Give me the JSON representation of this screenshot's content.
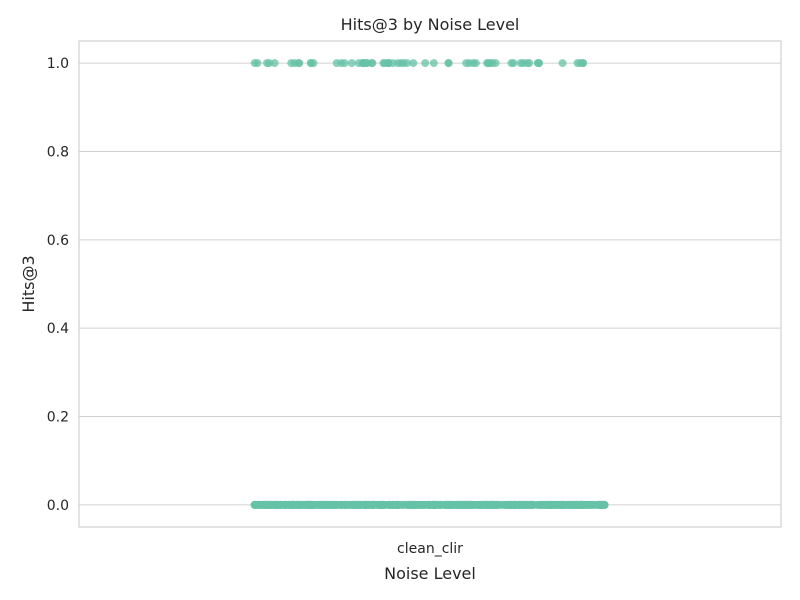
{
  "chart_data": {
    "type": "scatter",
    "subtype": "strip",
    "title": "Hits@3 by Noise Level",
    "xlabel": "Noise Level",
    "ylabel": "Hits@3",
    "categories": [
      "clean_clir"
    ],
    "ylim": [
      -0.05,
      1.05
    ],
    "yticks": [
      "0.0",
      "0.2",
      "0.4",
      "0.6",
      "0.8",
      "1.0"
    ],
    "grid": true,
    "legend": "none",
    "colors": {
      "point": "#66c2a5",
      "grid": "#d0d0d0",
      "text": "#262626"
    },
    "series": [
      {
        "category": "clean_clir",
        "values_at_1": 62,
        "values_at_0": 560,
        "distinct_values": [
          0,
          1
        ]
      }
    ]
  }
}
